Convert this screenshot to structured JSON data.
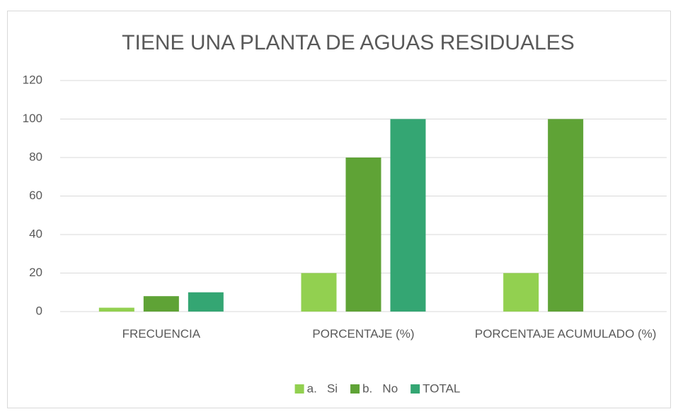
{
  "chart_data": {
    "type": "bar",
    "title": "TIENE UNA PLANTA DE AGUAS RESIDUALES",
    "categories": [
      "FRECUENCIA",
      "PORCENTAJE (%)",
      "PORCENTAJE ACUMULADO (%)"
    ],
    "series": [
      {
        "name": "a.   Si",
        "color": "#92d050",
        "values": [
          2,
          20,
          20
        ]
      },
      {
        "name": "b.   No",
        "color": "#5fa336",
        "values": [
          8,
          80,
          100
        ]
      },
      {
        "name": "TOTAL",
        "color": "#34a673",
        "values": [
          10,
          100,
          null
        ]
      }
    ],
    "ylim": [
      0,
      120
    ],
    "yticks": [
      0,
      20,
      40,
      60,
      80,
      100,
      120
    ],
    "grid": true,
    "legend": "bottom"
  }
}
